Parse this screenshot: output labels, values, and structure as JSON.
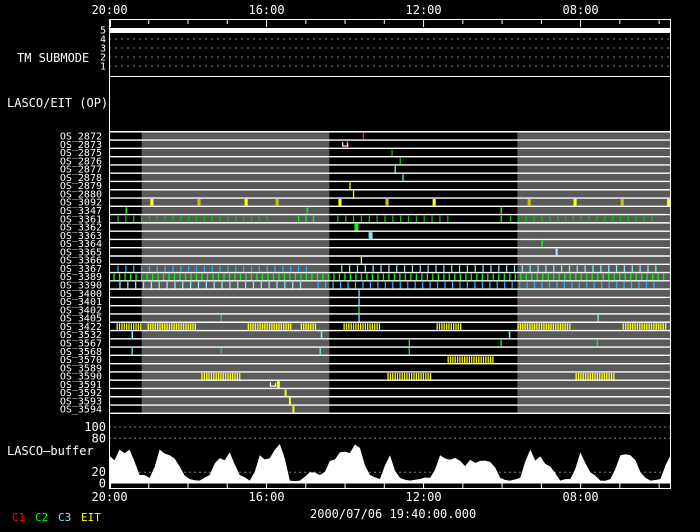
{
  "title_date": "2000/07/06 19:40:00.000",
  "panels": {
    "tm_submode": "TM SUBMODE",
    "op": "LASCO/EIT (OP)",
    "buffer": "LASCO—buffer"
  },
  "tm_levels": [
    "5",
    "4",
    "3",
    "2",
    "1"
  ],
  "tm_submode_value": 5,
  "buffer_ticks": [
    "100",
    "80",
    "20",
    "0"
  ],
  "time_ticks": [
    "20:00",
    "16:00",
    "12:00",
    "08:00"
  ],
  "legend": [
    {
      "label": "C1",
      "color": "#ff0000"
    },
    {
      "label": "C2",
      "color": "#00ff00"
    },
    {
      "label": "C3",
      "color": "#80e8ff"
    },
    {
      "label": "EIT",
      "color": "#ffff00"
    }
  ],
  "colors": {
    "c1": "#ff2020",
    "c2": "#00ff00",
    "c2d": "#00c000",
    "c3": "#80e8ff",
    "c3b": "#20b0ff",
    "eit": "#ffff00",
    "eit2": "#c8c000",
    "mark": "#ffffff",
    "shade": "#5a5a5a"
  },
  "chart_data": {
    "type": "timeline",
    "time_range_h": [
      0,
      14.29
    ],
    "shaded_intervals_h": [
      [
        0.82,
        5.6
      ],
      [
        10.39,
        14.29
      ]
    ],
    "rows": [
      {
        "label": "OS_2872",
        "events": [
          [
            6.45,
            0,
            "c1"
          ]
        ]
      },
      {
        "label": "OS_2873",
        "events": [
          [
            6.04,
            0.04,
            "c1"
          ]
        ],
        "marks": [
          5.94
        ]
      },
      {
        "label": "OS_2875",
        "events": [
          [
            7.18,
            0,
            "c2d"
          ]
        ]
      },
      {
        "label": "OS_2876",
        "events": [
          [
            7.39,
            0,
            "c2d"
          ]
        ]
      },
      {
        "label": "OS_2877",
        "events": [
          [
            7.26,
            0,
            "c3"
          ]
        ]
      },
      {
        "label": "OS_2878",
        "events": [
          [
            7.46,
            0,
            "c3"
          ]
        ]
      },
      {
        "label": "OS_2879",
        "events": [
          [
            6.11,
            0,
            "eit"
          ]
        ]
      },
      {
        "label": "OS_2880",
        "events": [
          [
            6.2,
            0,
            "eit"
          ]
        ]
      },
      {
        "label": "OS_3092",
        "events": [
          [
            1.04,
            0.08,
            "eit"
          ],
          [
            2.24,
            0.08,
            "eit2"
          ],
          [
            3.44,
            0.08,
            "eit"
          ],
          [
            4.23,
            0.08,
            "eit2"
          ],
          [
            5.83,
            0.08,
            "eit"
          ],
          [
            7.03,
            0.08,
            "eit2"
          ],
          [
            8.23,
            0.08,
            "eit"
          ],
          [
            10.65,
            0.08,
            "eit2"
          ],
          [
            11.82,
            0.08,
            "eit"
          ],
          [
            13.02,
            0.08,
            "eit2"
          ],
          [
            14.2,
            0.08,
            "eit"
          ]
        ]
      },
      {
        "label": "OS_3347",
        "events": [
          [
            0.41,
            0.04,
            "c2"
          ],
          [
            5.02,
            0.04,
            "c2"
          ],
          [
            9.96,
            0.04,
            "c2"
          ]
        ]
      },
      {
        "label": "OS_3361",
        "series": [
          [
            0.2,
            4.1,
            0.2,
            "c2d"
          ],
          [
            4.8,
            5.2,
            0.19,
            "c2"
          ],
          [
            5.8,
            8.6,
            0.2,
            "c2d"
          ],
          [
            9.96,
            9.97,
            0.2,
            "c2"
          ],
          [
            10.2,
            13.9,
            0.2,
            "c2d"
          ]
        ]
      },
      {
        "label": "OS_3362",
        "events": [
          [
            6.24,
            0.1,
            "c2"
          ]
        ]
      },
      {
        "label": "OS_3363",
        "events": [
          [
            6.6,
            0.1,
            "c3"
          ]
        ]
      },
      {
        "label": "OS_3364",
        "events": [
          [
            11.0,
            0.04,
            "c2"
          ]
        ]
      },
      {
        "label": "OS_3365",
        "events": [
          [
            11.36,
            0.06,
            "c3"
          ]
        ]
      },
      {
        "label": "OS_3366",
        "events": [
          [
            6.4,
            0.03,
            "eit"
          ]
        ]
      },
      {
        "label": "OS_3367",
        "series": [
          [
            0.2,
            5.0,
            0.2,
            "c3b"
          ],
          [
            5.9,
            13.9,
            0.2,
            "c3"
          ]
        ]
      },
      {
        "label": "OS_3389",
        "series": [
          [
            0.1,
            14.2,
            0.14,
            "c2"
          ]
        ]
      },
      {
        "label": "OS_3390",
        "series": [
          [
            0.25,
            5.0,
            0.2,
            "c3"
          ],
          [
            5.3,
            14.0,
            0.19,
            "c3b"
          ]
        ]
      },
      {
        "label": "OS_3400",
        "events": [
          [
            6.34,
            0,
            "c3"
          ]
        ]
      },
      {
        "label": "OS_3401",
        "events": [
          [
            6.34,
            0,
            "c3"
          ]
        ]
      },
      {
        "label": "OS_3402",
        "events": [
          [
            6.34,
            0,
            "c2"
          ]
        ]
      },
      {
        "label": "OS_3405",
        "events": [
          [
            2.83,
            0,
            "c3b"
          ],
          [
            6.34,
            0,
            "c3"
          ],
          [
            12.43,
            0,
            "c3"
          ]
        ]
      },
      {
        "label": "OS_3422",
        "series": [
          [
            0.18,
            0.79,
            0.06,
            "eit"
          ],
          [
            0.97,
            2.22,
            0.06,
            "eit"
          ],
          [
            3.52,
            4.61,
            0.06,
            "eit"
          ],
          [
            4.87,
            5.27,
            0.06,
            "eit"
          ],
          [
            5.96,
            6.9,
            0.06,
            "eit"
          ],
          [
            8.33,
            8.94,
            0.06,
            "eit"
          ],
          [
            10.39,
            11.75,
            0.06,
            "eit"
          ],
          [
            13.07,
            14.17,
            0.06,
            "eit"
          ]
        ]
      },
      {
        "label": "OS_3532",
        "events": [
          [
            0.56,
            0.04,
            "c3"
          ],
          [
            5.38,
            0.04,
            "c3"
          ],
          [
            10.17,
            0.04,
            "c3"
          ]
        ]
      },
      {
        "label": "OS_3567",
        "events": [
          [
            7.62,
            0,
            "c2"
          ],
          [
            9.96,
            0,
            "c2"
          ],
          [
            12.41,
            0,
            "c2"
          ]
        ]
      },
      {
        "label": "OS_3568",
        "events": [
          [
            0.56,
            0,
            "c3"
          ],
          [
            2.83,
            0,
            "c3b"
          ],
          [
            5.35,
            0,
            "c3"
          ],
          [
            7.62,
            0,
            "c2"
          ]
        ]
      },
      {
        "label": "OS_3570",
        "series": [
          [
            8.61,
            9.76,
            0.06,
            "eit"
          ]
        ]
      },
      {
        "label": "OS_3589",
        "events": []
      },
      {
        "label": "OS_3590",
        "series": [
          [
            2.34,
            3.34,
            0.06,
            "eit"
          ],
          [
            7.08,
            8.18,
            0.06,
            "eit"
          ],
          [
            11.87,
            12.87,
            0.06,
            "eit"
          ]
        ]
      },
      {
        "label": "OS_3591",
        "events": [
          [
            4.26,
            0.08,
            "eit"
          ]
        ],
        "marks": [
          4.1
        ]
      },
      {
        "label": "OS_3592",
        "events": [
          [
            4.46,
            0.05,
            "eit"
          ]
        ]
      },
      {
        "label": "OS_3593",
        "events": [
          [
            4.57,
            0.05,
            "eit"
          ]
        ]
      },
      {
        "label": "OS_3594",
        "events": [
          [
            4.66,
            0.05,
            "eit"
          ]
        ]
      }
    ],
    "buffer": {
      "ylim": [
        0,
        100
      ],
      "gridlines": [
        100,
        80,
        20
      ],
      "values": [
        49,
        60,
        60,
        15,
        10,
        60,
        50,
        30,
        8,
        5,
        15,
        45,
        55,
        15,
        5,
        50,
        45,
        70,
        5,
        5,
        20,
        15,
        40,
        55,
        54,
        63,
        15,
        8,
        50,
        10,
        5,
        8,
        10,
        50,
        42,
        40,
        42,
        40,
        38,
        10,
        5,
        10,
        60,
        48,
        30,
        5,
        8,
        55,
        20,
        5,
        8,
        50,
        50,
        20,
        5,
        8,
        50
      ]
    }
  }
}
